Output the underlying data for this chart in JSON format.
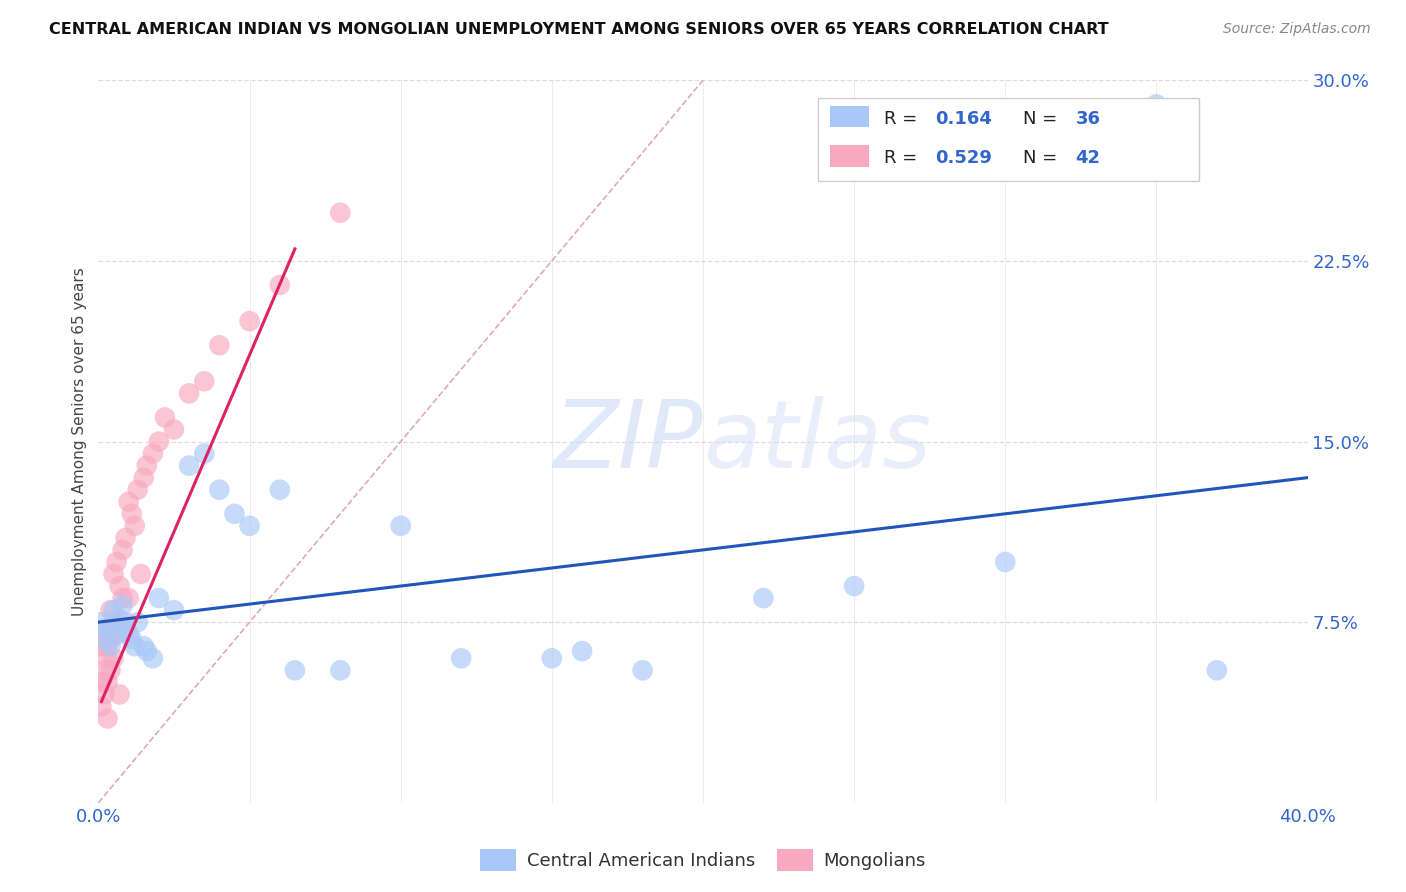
{
  "title": "CENTRAL AMERICAN INDIAN VS MONGOLIAN UNEMPLOYMENT AMONG SENIORS OVER 65 YEARS CORRELATION CHART",
  "source": "Source: ZipAtlas.com",
  "ylabel": "Unemployment Among Seniors over 65 years",
  "watermark_zip": "ZIP",
  "watermark_atlas": "atlas",
  "xlim": [
    0.0,
    0.4
  ],
  "ylim": [
    0.0,
    0.3
  ],
  "blue_R": 0.164,
  "blue_N": 36,
  "pink_R": 0.529,
  "pink_N": 42,
  "blue_color": "#a8c8f8",
  "pink_color": "#f8a8c0",
  "blue_line_color": "#2255bb",
  "pink_line_color": "#dd2266",
  "diag_color": "#e0b0c0",
  "background_color": "#ffffff",
  "grid_color": "#dddddd",
  "blue_scatter_x": [
    0.001,
    0.002,
    0.003,
    0.004,
    0.005,
    0.006,
    0.007,
    0.008,
    0.009,
    0.01,
    0.011,
    0.012,
    0.013,
    0.015,
    0.016,
    0.018,
    0.02,
    0.025,
    0.03,
    0.035,
    0.04,
    0.045,
    0.05,
    0.06,
    0.065,
    0.08,
    0.1,
    0.12,
    0.15,
    0.18,
    0.22,
    0.25,
    0.3,
    0.35,
    0.37,
    0.16
  ],
  "blue_scatter_y": [
    0.075,
    0.068,
    0.072,
    0.065,
    0.08,
    0.07,
    0.076,
    0.082,
    0.073,
    0.07,
    0.068,
    0.065,
    0.075,
    0.065,
    0.063,
    0.06,
    0.085,
    0.08,
    0.14,
    0.145,
    0.13,
    0.12,
    0.115,
    0.13,
    0.055,
    0.055,
    0.115,
    0.06,
    0.06,
    0.055,
    0.085,
    0.09,
    0.1,
    0.29,
    0.055,
    0.063
  ],
  "pink_scatter_x": [
    0.001,
    0.001,
    0.001,
    0.002,
    0.002,
    0.002,
    0.003,
    0.003,
    0.003,
    0.003,
    0.004,
    0.004,
    0.004,
    0.005,
    0.005,
    0.005,
    0.006,
    0.006,
    0.007,
    0.007,
    0.008,
    0.008,
    0.009,
    0.009,
    0.01,
    0.01,
    0.011,
    0.012,
    0.013,
    0.014,
    0.015,
    0.016,
    0.018,
    0.02,
    0.022,
    0.025,
    0.03,
    0.035,
    0.04,
    0.05,
    0.06,
    0.08
  ],
  "pink_scatter_y": [
    0.05,
    0.065,
    0.04,
    0.055,
    0.072,
    0.045,
    0.06,
    0.065,
    0.05,
    0.035,
    0.068,
    0.08,
    0.055,
    0.075,
    0.095,
    0.06,
    0.07,
    0.1,
    0.09,
    0.045,
    0.105,
    0.085,
    0.11,
    0.075,
    0.085,
    0.125,
    0.12,
    0.115,
    0.13,
    0.095,
    0.135,
    0.14,
    0.145,
    0.15,
    0.16,
    0.155,
    0.17,
    0.175,
    0.19,
    0.2,
    0.215,
    0.245
  ],
  "legend_label_blue": "Central American Indians",
  "legend_label_pink": "Mongolians"
}
